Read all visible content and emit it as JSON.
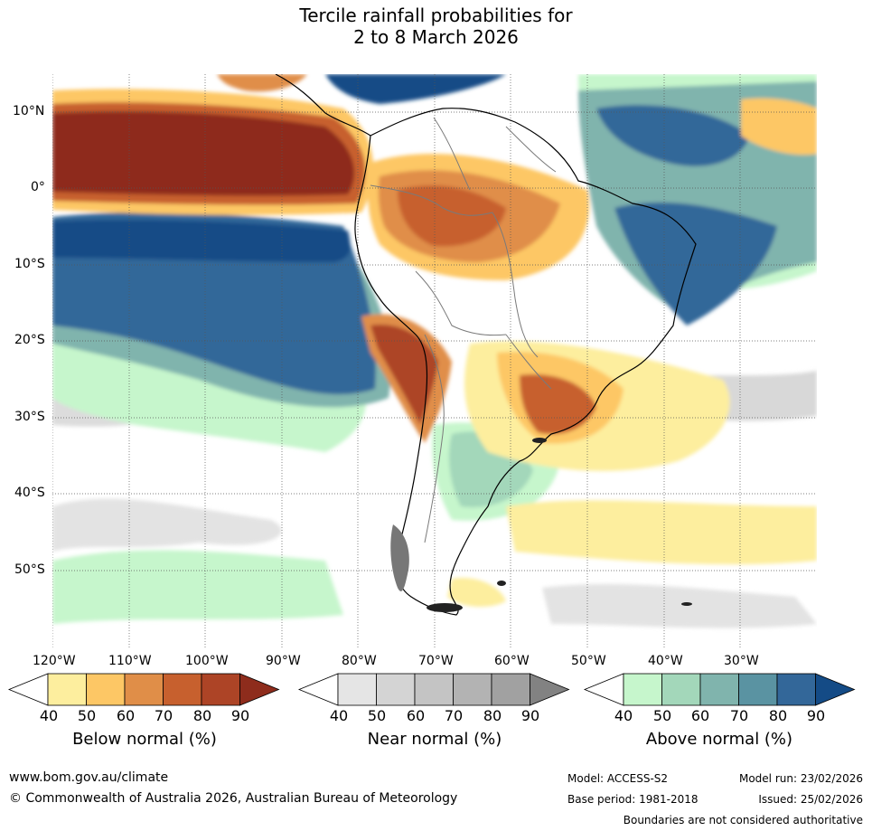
{
  "title": {
    "line1": "Tercile rainfall probabilities for",
    "line2": "2 to 8 March 2026"
  },
  "lat_labels": [
    "10°N",
    "0°",
    "10°S",
    "20°S",
    "30°S",
    "40°S",
    "50°S"
  ],
  "lon_labels": [
    "120°W",
    "110°W",
    "100°W",
    "90°W",
    "80°W",
    "70°W",
    "60°W",
    "50°W",
    "40°W",
    "30°W"
  ],
  "colorbars": [
    {
      "name": "below",
      "title": "Below normal (%)",
      "ticks": [
        "40",
        "50",
        "60",
        "70",
        "80",
        "90"
      ],
      "colors": [
        "#fdee9e",
        "#fdc765",
        "#e08e48",
        "#c7602e",
        "#ad4426",
        "#8e2c1c"
      ]
    },
    {
      "name": "near",
      "title": "Near normal (%)",
      "ticks": [
        "40",
        "50",
        "60",
        "70",
        "80",
        "90"
      ],
      "colors": [
        "#e5e5e5",
        "#d4d4d4",
        "#c4c4c4",
        "#b3b3b3",
        "#a1a1a1",
        "#828282"
      ]
    },
    {
      "name": "above",
      "title": "Above normal (%)",
      "ticks": [
        "40",
        "50",
        "60",
        "70",
        "80",
        "90"
      ],
      "colors": [
        "#c6f6cc",
        "#a3d7ba",
        "#80b4ad",
        "#5a93a2",
        "#336799",
        "#144b86"
      ]
    }
  ],
  "footer": {
    "website": "www.bom.gov.au/climate",
    "copyright": "© Commonwealth of Australia 2026, Australian Bureau of Meteorology",
    "model": "Model: ACCESS-S2",
    "base_period": "Base period: 1981-2018",
    "model_run": "Model run: 23/02/2026",
    "issued": "Issued: 25/02/2026",
    "disclaimer": "Boundaries are not considered authoritative"
  }
}
